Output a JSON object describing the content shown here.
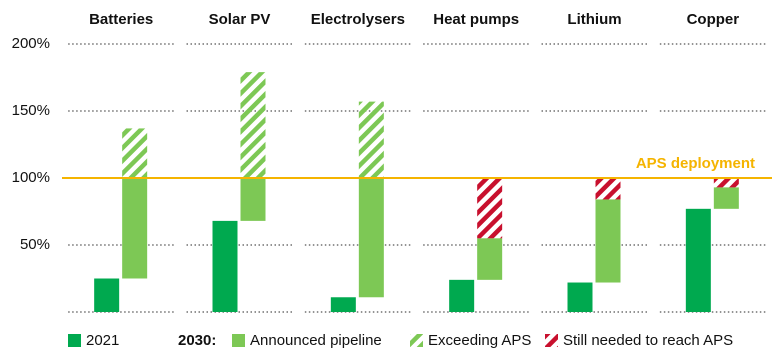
{
  "chart_data": {
    "type": "bar",
    "categories": [
      "Batteries",
      "Solar PV",
      "Electrolysers",
      "Heat pumps",
      "Lithium",
      "Copper"
    ],
    "series": [
      {
        "name": "2021",
        "color": "#00a94f",
        "values": [
          25,
          68,
          11,
          24,
          22,
          77
        ]
      },
      {
        "name": "Announced pipeline",
        "color": "#7dc855",
        "values": [
          75,
          32,
          89,
          31,
          62,
          16
        ]
      },
      {
        "name": "Exceeding APS",
        "color": "#7dc855",
        "hatch": true,
        "values": [
          37,
          79,
          57,
          null,
          null,
          null
        ]
      },
      {
        "name": "Still needed to reach APS",
        "color": "#c8102e",
        "hatch": true,
        "values": [
          null,
          null,
          null,
          45,
          16,
          7
        ]
      }
    ],
    "legend_prefix": "2030:",
    "reference_line": {
      "value": 100,
      "label": "APS deployment",
      "color": "#f5b400"
    },
    "ylim": [
      0,
      200
    ],
    "yticks": [
      {
        "value": 50,
        "label": "50%"
      },
      {
        "value": 100,
        "label": "100%"
      },
      {
        "value": 150,
        "label": "150%"
      },
      {
        "value": 200,
        "label": "200%"
      }
    ],
    "grid": true
  }
}
